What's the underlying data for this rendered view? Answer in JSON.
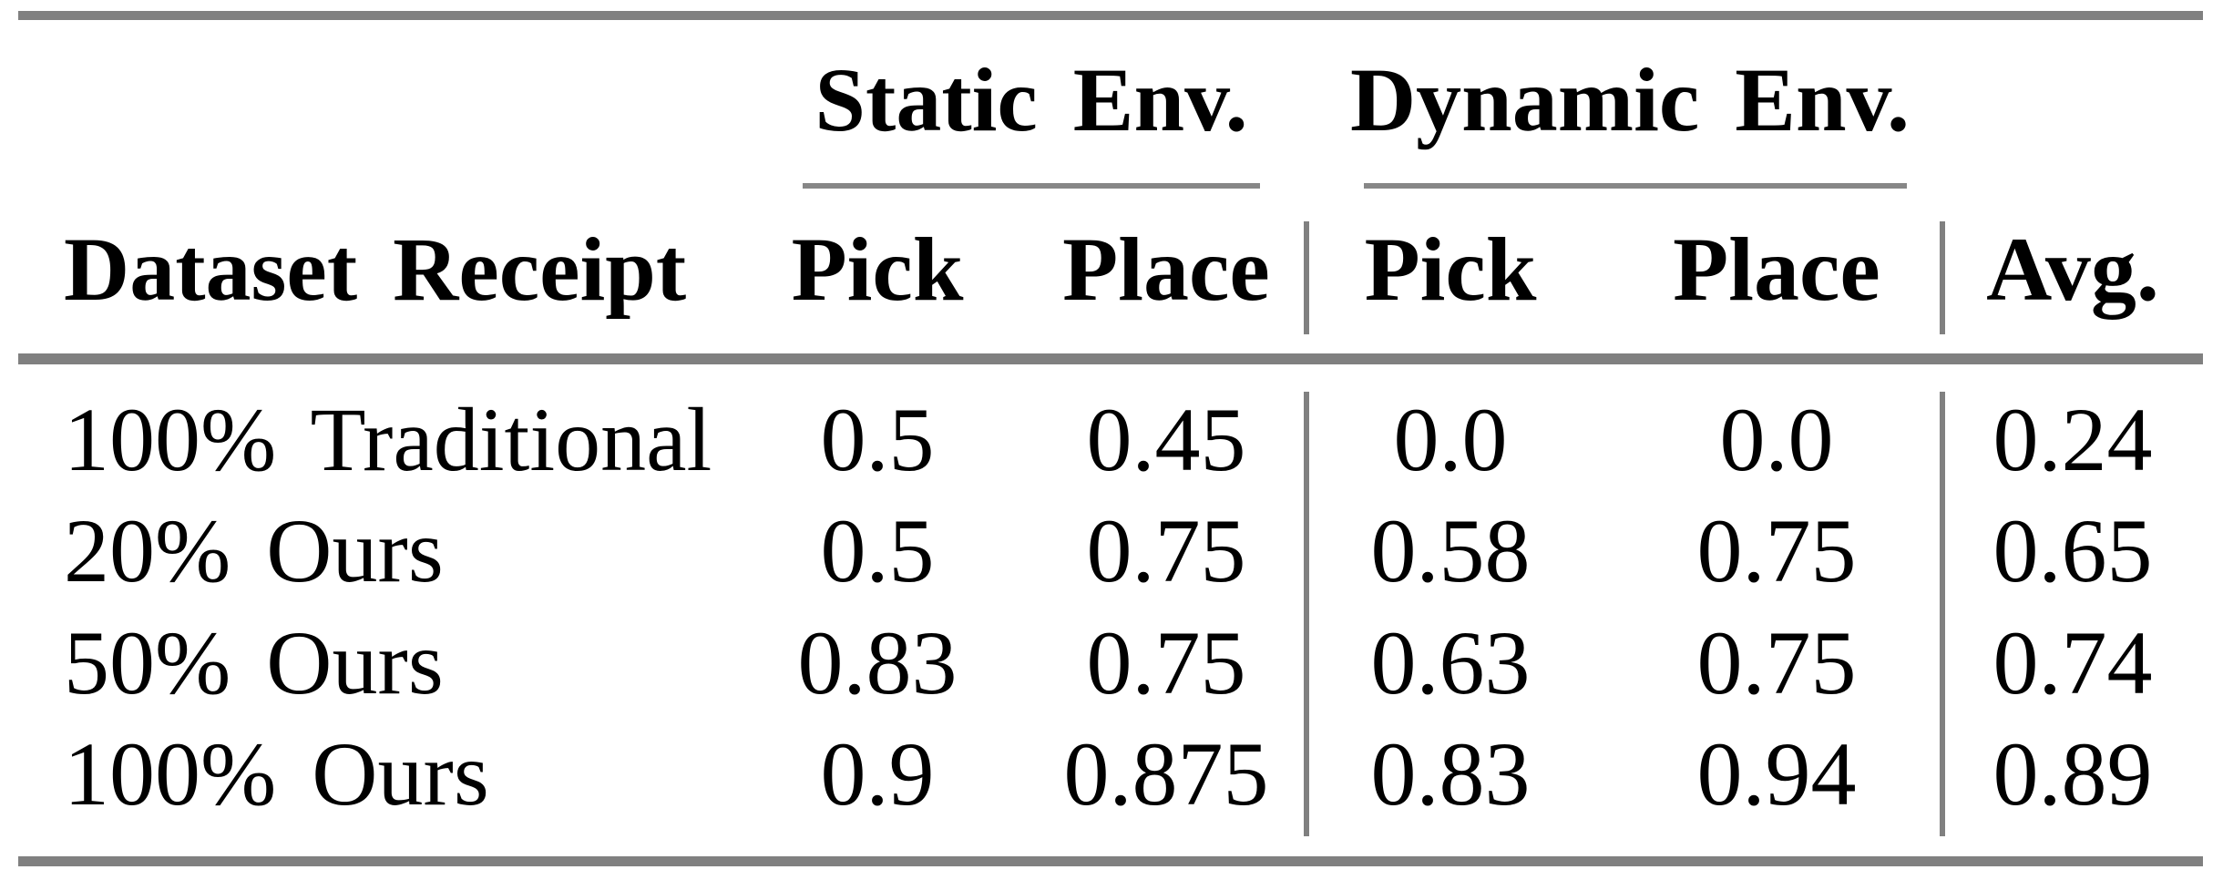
{
  "colors": {
    "rule_gray": "#808080",
    "text": "#000000",
    "background": "#ffffff"
  },
  "table": {
    "group_headers": [
      {
        "label": "Static Env."
      },
      {
        "label": "Dynamic Env."
      }
    ],
    "columns": {
      "row_header": "Dataset Receipt",
      "static_pick": "Pick",
      "static_place": "Place",
      "dynamic_pick": "Pick",
      "dynamic_place": "Place",
      "avg": "Avg."
    },
    "rows": [
      {
        "label": "100% Traditional",
        "static_pick": "0.5",
        "static_place": "0.45",
        "dynamic_pick": "0.0",
        "dynamic_place": "0.0",
        "avg": "0.24"
      },
      {
        "label": "20% Ours",
        "static_pick": "0.5",
        "static_place": "0.75",
        "dynamic_pick": "0.58",
        "dynamic_place": "0.75",
        "avg": "0.65"
      },
      {
        "label": "50% Ours",
        "static_pick": "0.83",
        "static_place": "0.75",
        "dynamic_pick": "0.63",
        "dynamic_place": "0.75",
        "avg": "0.74"
      },
      {
        "label": "100% Ours",
        "static_pick": "0.9",
        "static_place": "0.875",
        "dynamic_pick": "0.83",
        "dynamic_place": "0.94",
        "avg": "0.89"
      }
    ]
  }
}
